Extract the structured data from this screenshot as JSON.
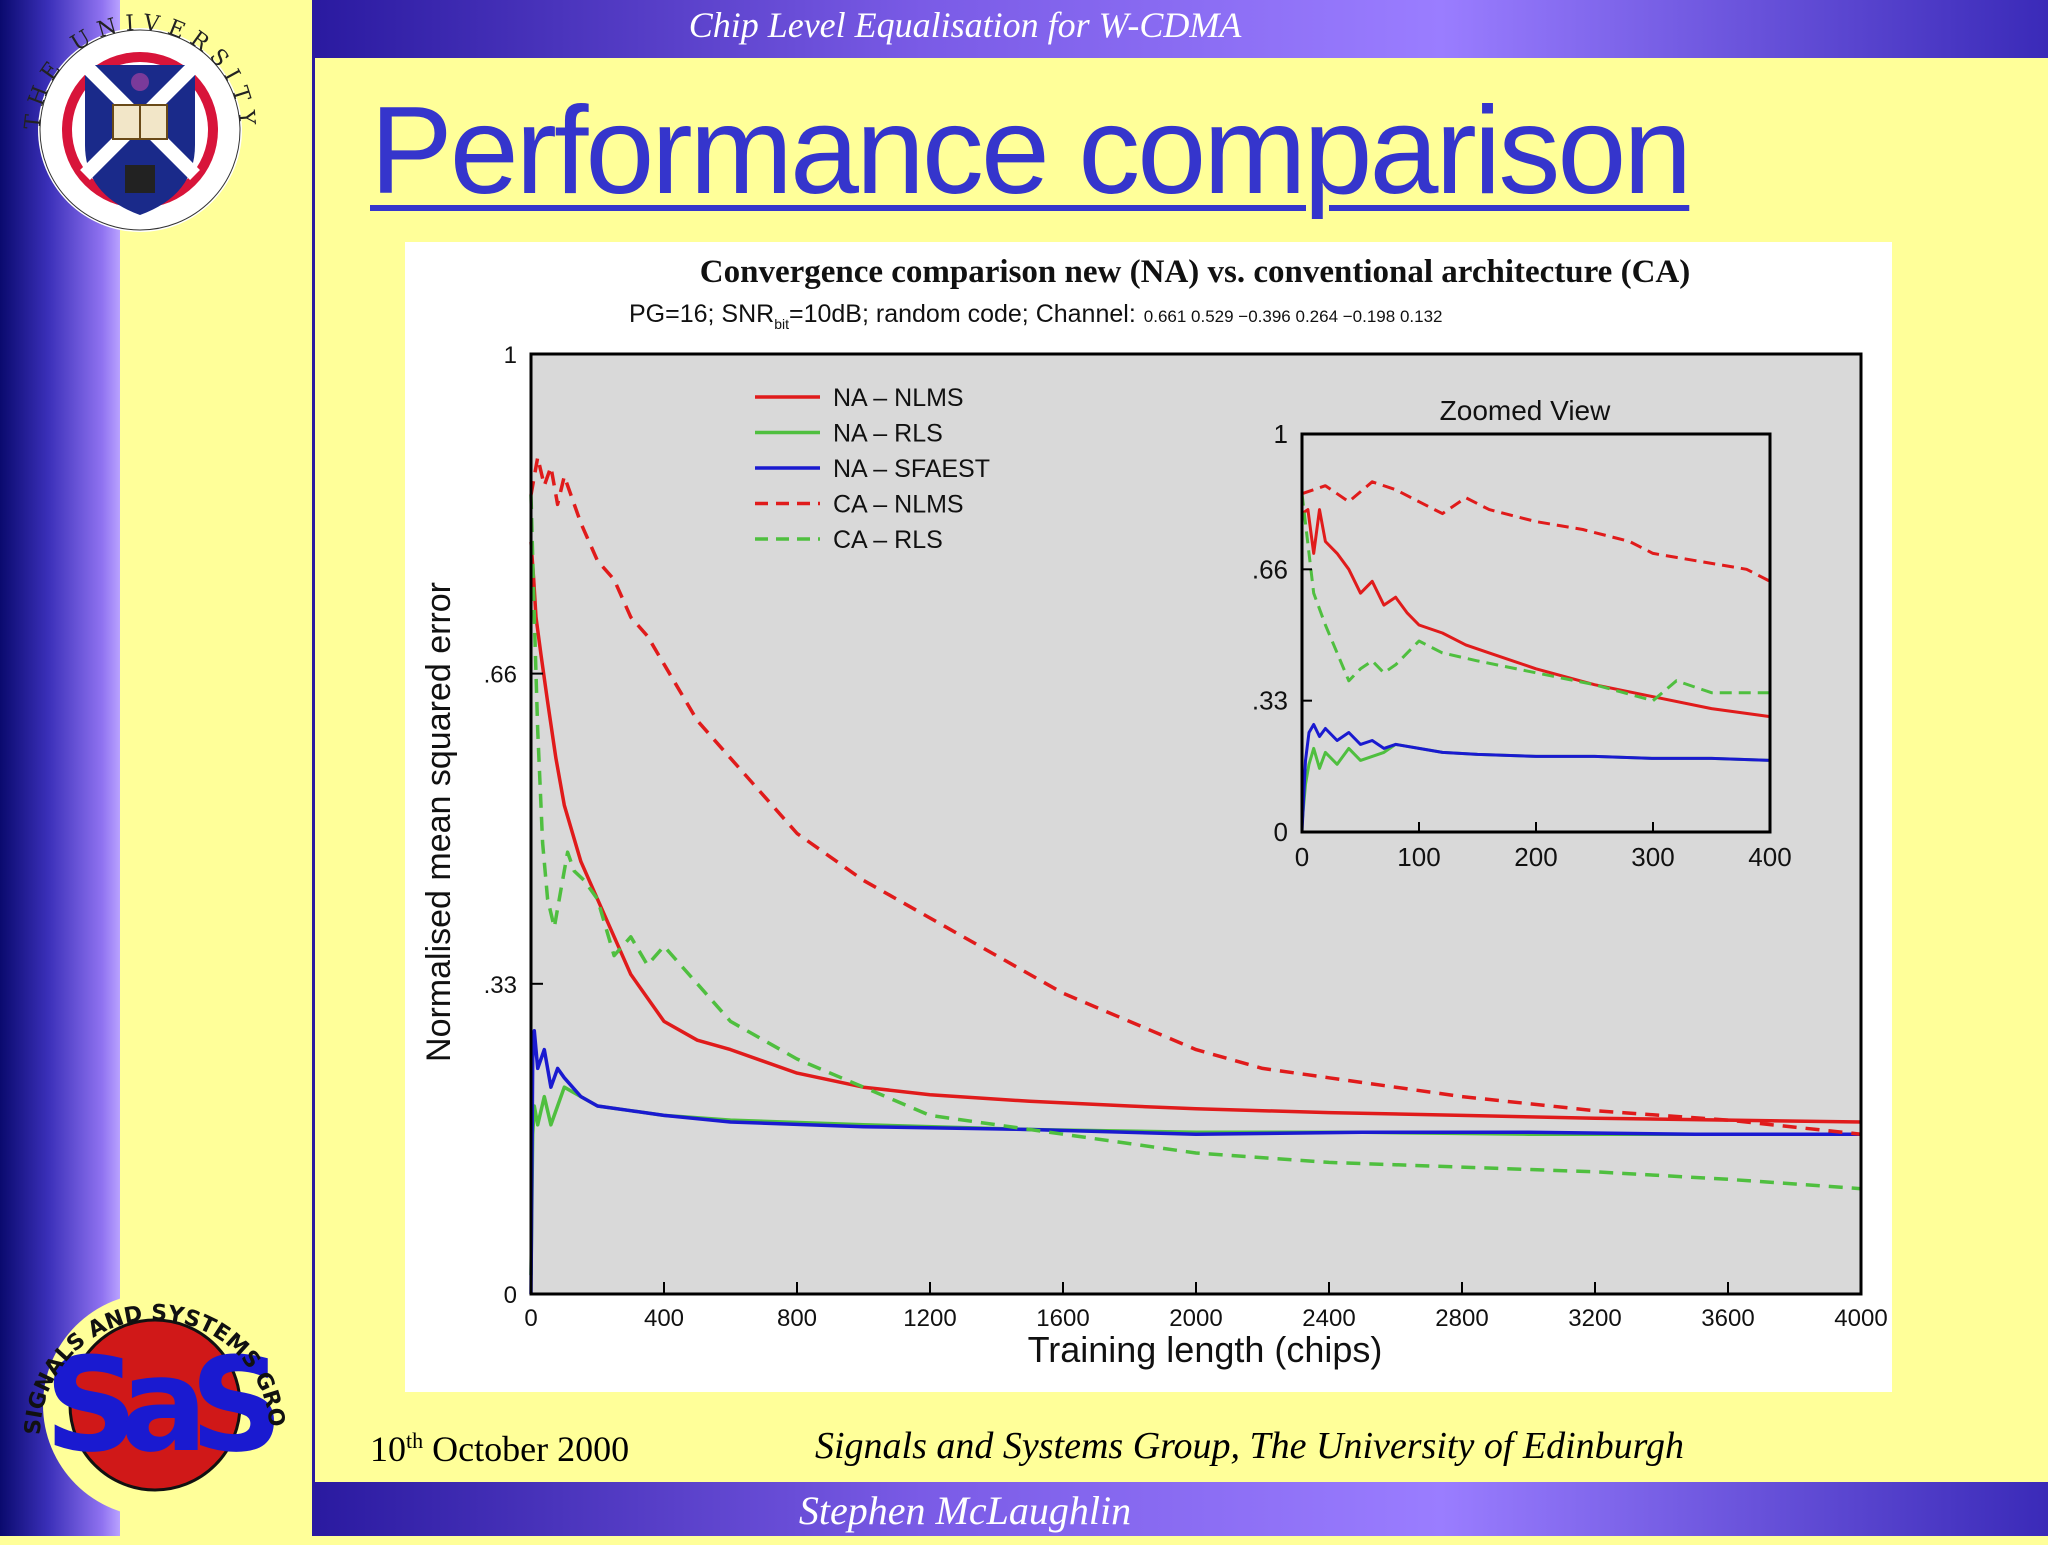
{
  "header": {
    "title": "Chip Level Equalisation for W-CDMA"
  },
  "slide": {
    "title": "Performance comparison"
  },
  "footer": {
    "date_day": "10",
    "date_suffix": "th",
    "date_rest": " October 2000",
    "group": "Signals and Systems Group, The University of Edinburgh",
    "author": "Stephen McLaughlin"
  },
  "logos": {
    "university_text": "THE UNIVERSITY OF EDINBURGH",
    "sas_text": "SIGNALS AND SYSTEMS GROUP · THE UNIVERSITY OF EDINBURGH",
    "sas_letters": "SaS"
  },
  "colors": {
    "bg": "#ffff99",
    "bar": "#5b3fd6",
    "title": "#3535cc",
    "na_nlms": "#e01b1b",
    "na_rls": "#4fbf3f",
    "na_sfaest": "#1a1ad0",
    "ca_nlms": "#e01b1b",
    "ca_rls": "#4fbf3f"
  },
  "chart_data": [
    {
      "type": "line",
      "title": "Convergence comparison new (NA) vs. conventional architecture (CA)",
      "subtitle_pre": "PG=16; SNR",
      "subtitle_sub": "bit",
      "subtitle_post": "=10dB; random code; Channel:",
      "subtitle_channel": "0.661 0.529 −0.396 0.264 −0.198 0.132",
      "xlabel": "Training length (chips)",
      "ylabel": "Normalised mean squared error",
      "xlim": [
        0,
        4000
      ],
      "ylim": [
        0,
        1
      ],
      "xticks": [
        "0",
        "400",
        "800",
        "1200",
        "1600",
        "2000",
        "2400",
        "2800",
        "3200",
        "3600",
        "4000"
      ],
      "yticks": [
        {
          "value": 0,
          "label": "0"
        },
        {
          "value": 0.33,
          "label": ".33"
        },
        {
          "value": 0.66,
          "label": ".66"
        },
        {
          "value": 1,
          "label": "1"
        }
      ],
      "legend_position": "top-left",
      "grid": false,
      "series": [
        {
          "name": "NA – NLMS",
          "style": "solid",
          "color": "#e01b1b",
          "x": [
            0,
            8,
            15,
            30,
            50,
            75,
            100,
            150,
            200,
            300,
            400,
            500,
            600,
            800,
            1000,
            1200,
            1500,
            1800,
            2000,
            2400,
            2800,
            3200,
            3600,
            4000
          ],
          "y": [
            0.8,
            0.76,
            0.72,
            0.68,
            0.63,
            0.57,
            0.52,
            0.46,
            0.42,
            0.34,
            0.29,
            0.27,
            0.26,
            0.235,
            0.22,
            0.212,
            0.205,
            0.2,
            0.197,
            0.193,
            0.19,
            0.187,
            0.185,
            0.183
          ]
        },
        {
          "name": "NA – RLS",
          "style": "solid",
          "color": "#4fbf3f",
          "x": [
            0,
            5,
            10,
            20,
            40,
            60,
            80,
            100,
            150,
            200,
            300,
            400,
            600,
            1000,
            1500,
            2000,
            2500,
            3000,
            3500,
            4000
          ],
          "y": [
            0.02,
            0.17,
            0.2,
            0.18,
            0.21,
            0.18,
            0.2,
            0.22,
            0.21,
            0.2,
            0.195,
            0.19,
            0.185,
            0.18,
            0.175,
            0.172,
            0.172,
            0.17,
            0.17,
            0.17
          ]
        },
        {
          "name": "NA – SFAEST",
          "style": "solid",
          "color": "#1a1ad0",
          "x": [
            0,
            5,
            10,
            20,
            40,
            60,
            80,
            100,
            150,
            200,
            300,
            400,
            600,
            1000,
            1500,
            2000,
            2500,
            3000,
            3500,
            4000
          ],
          "y": [
            0.0,
            0.25,
            0.28,
            0.24,
            0.26,
            0.22,
            0.24,
            0.23,
            0.21,
            0.2,
            0.195,
            0.19,
            0.183,
            0.178,
            0.175,
            0.17,
            0.172,
            0.172,
            0.17,
            0.17
          ]
        },
        {
          "name": "CA – NLMS",
          "style": "dashed",
          "color": "#e01b1b",
          "x": [
            0,
            20,
            40,
            60,
            80,
            100,
            150,
            200,
            250,
            300,
            350,
            400,
            500,
            600,
            700,
            800,
            1000,
            1200,
            1400,
            1600,
            1800,
            2000,
            2200,
            2400,
            2800,
            3200,
            3600,
            4000
          ],
          "y": [
            0.85,
            0.89,
            0.86,
            0.88,
            0.84,
            0.87,
            0.82,
            0.78,
            0.76,
            0.72,
            0.7,
            0.67,
            0.61,
            0.57,
            0.53,
            0.49,
            0.44,
            0.4,
            0.36,
            0.32,
            0.29,
            0.26,
            0.24,
            0.23,
            0.21,
            0.195,
            0.185,
            0.17
          ]
        },
        {
          "name": "CA – RLS",
          "style": "dashed",
          "color": "#4fbf3f",
          "x": [
            0,
            10,
            20,
            35,
            50,
            70,
            90,
            110,
            130,
            160,
            200,
            250,
            300,
            350,
            400,
            450,
            500,
            600,
            800,
            1000,
            1200,
            1500,
            2000,
            2400,
            2800,
            3200,
            3600,
            4000
          ],
          "y": [
            0.85,
            0.72,
            0.6,
            0.48,
            0.42,
            0.39,
            0.43,
            0.47,
            0.45,
            0.44,
            0.42,
            0.36,
            0.38,
            0.35,
            0.37,
            0.35,
            0.33,
            0.29,
            0.25,
            0.22,
            0.19,
            0.175,
            0.15,
            0.14,
            0.135,
            0.13,
            0.122,
            0.112
          ]
        }
      ]
    },
    {
      "type": "line",
      "title": "Zoomed View",
      "xlim": [
        0,
        400
      ],
      "ylim": [
        0,
        1
      ],
      "xticks": [
        "0",
        "100",
        "200",
        "300",
        "400"
      ],
      "yticks": [
        {
          "value": 0,
          "label": "0"
        },
        {
          "value": 0.33,
          "label": ".33"
        },
        {
          "value": 0.66,
          "label": ".66"
        },
        {
          "value": 1,
          "label": "1"
        }
      ],
      "series": [
        {
          "name": "NA – NLMS",
          "style": "solid",
          "color": "#e01b1b",
          "x": [
            0,
            5,
            10,
            15,
            20,
            30,
            40,
            50,
            60,
            70,
            80,
            90,
            100,
            120,
            140,
            160,
            200,
            250,
            300,
            350,
            400
          ],
          "y": [
            0.8,
            0.81,
            0.7,
            0.81,
            0.73,
            0.7,
            0.66,
            0.6,
            0.63,
            0.57,
            0.59,
            0.55,
            0.52,
            0.5,
            0.47,
            0.45,
            0.41,
            0.37,
            0.34,
            0.31,
            0.29
          ]
        },
        {
          "name": "NA – RLS",
          "style": "solid",
          "color": "#4fbf3f",
          "x": [
            0,
            3,
            6,
            10,
            15,
            20,
            30,
            40,
            50,
            60,
            70,
            80,
            100,
            120,
            150,
            200,
            250,
            300,
            350,
            400
          ],
          "y": [
            0.02,
            0.12,
            0.17,
            0.21,
            0.16,
            0.2,
            0.17,
            0.21,
            0.18,
            0.19,
            0.2,
            0.22,
            0.21,
            0.2,
            0.195,
            0.19,
            0.19,
            0.185,
            0.185,
            0.18
          ]
        },
        {
          "name": "NA – SFAEST",
          "style": "solid",
          "color": "#1a1ad0",
          "x": [
            0,
            3,
            6,
            10,
            15,
            20,
            30,
            40,
            50,
            60,
            70,
            80,
            100,
            120,
            150,
            200,
            250,
            300,
            350,
            400
          ],
          "y": [
            0.0,
            0.18,
            0.25,
            0.27,
            0.24,
            0.26,
            0.23,
            0.25,
            0.22,
            0.23,
            0.21,
            0.22,
            0.21,
            0.2,
            0.195,
            0.19,
            0.19,
            0.185,
            0.185,
            0.18
          ]
        },
        {
          "name": "CA – NLMS",
          "style": "dashed",
          "color": "#e01b1b",
          "x": [
            0,
            20,
            40,
            60,
            80,
            100,
            120,
            140,
            160,
            200,
            240,
            280,
            300,
            340,
            380,
            400
          ],
          "y": [
            0.85,
            0.87,
            0.83,
            0.88,
            0.86,
            0.83,
            0.8,
            0.84,
            0.81,
            0.78,
            0.76,
            0.73,
            0.7,
            0.68,
            0.66,
            0.63
          ]
        },
        {
          "name": "CA – RLS",
          "style": "dashed",
          "color": "#4fbf3f",
          "x": [
            0,
            10,
            20,
            30,
            40,
            50,
            60,
            70,
            80,
            100,
            120,
            150,
            200,
            250,
            300,
            320,
            350,
            380,
            400
          ],
          "y": [
            0.85,
            0.6,
            0.52,
            0.45,
            0.38,
            0.41,
            0.43,
            0.4,
            0.42,
            0.48,
            0.45,
            0.43,
            0.4,
            0.37,
            0.33,
            0.38,
            0.35,
            0.35,
            0.35
          ]
        }
      ]
    }
  ]
}
